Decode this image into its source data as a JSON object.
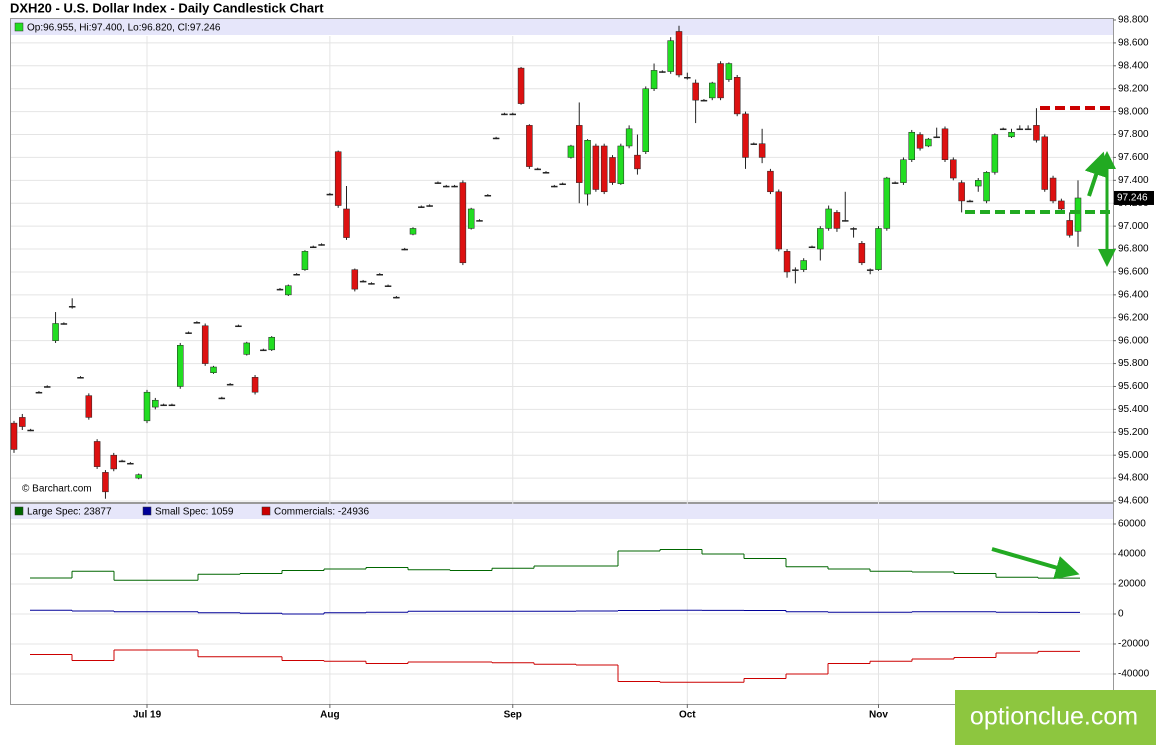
{
  "brand": "optionclue.com",
  "chart_data": [
    {
      "type": "candlestick",
      "title": "DXH20 - U.S. Dollar Index - Daily Candlestick Chart",
      "ohlc_label": "Op:96.955, Hi:97.400, Lo:96.820, Cl:97.246",
      "watermark": "© Barchart.com",
      "categories": [
        null,
        null,
        null,
        null,
        null,
        null,
        null,
        null,
        null,
        null,
        null,
        null,
        null,
        null,
        null,
        null,
        "Jul 19",
        null,
        null,
        null,
        null,
        null,
        null,
        null,
        null,
        null,
        null,
        null,
        null,
        null,
        null,
        null,
        null,
        null,
        null,
        null,
        null,
        null,
        "Aug",
        null,
        null,
        null,
        null,
        null,
        null,
        null,
        null,
        null,
        null,
        null,
        null,
        null,
        null,
        null,
        null,
        null,
        null,
        null,
        null,
        null,
        "Sep",
        null,
        null,
        null,
        null,
        null,
        null,
        null,
        null,
        null,
        null,
        null,
        null,
        null,
        null,
        null,
        null,
        null,
        null,
        null,
        null,
        "Oct",
        null,
        null,
        null,
        null,
        null,
        null,
        null,
        null,
        null,
        null,
        null,
        null,
        null,
        null,
        null,
        null,
        null,
        null,
        null,
        null,
        null,
        null,
        "Nov",
        null,
        null,
        null,
        null,
        null,
        null,
        null,
        null,
        null,
        null,
        null,
        null,
        null,
        null,
        null,
        null,
        null,
        null,
        null,
        null,
        null,
        null,
        null,
        null
      ],
      "open": [
        95.28,
        95.33,
        95.22,
        95.55,
        95.6,
        96.0,
        96.15,
        96.3,
        95.68,
        95.52,
        95.12,
        94.85,
        95.0,
        94.95,
        94.93,
        94.8,
        95.3,
        95.42,
        95.44,
        95.44,
        95.6,
        96.07,
        96.16,
        96.13,
        95.72,
        95.5,
        95.62,
        96.13,
        95.88,
        95.68,
        95.92,
        95.92,
        96.45,
        96.4,
        96.58,
        96.62,
        96.82,
        96.84,
        97.28,
        97.65,
        97.15,
        96.62,
        96.52,
        96.5,
        96.58,
        96.48,
        96.38,
        96.8,
        96.93,
        97.17,
        97.18,
        97.38,
        97.35,
        97.35,
        97.38,
        96.98,
        97.05,
        97.27,
        97.77,
        97.98,
        97.98,
        98.38,
        97.88,
        97.5,
        97.47,
        97.35,
        97.37,
        97.6,
        97.88,
        97.28,
        97.7,
        97.7,
        97.6,
        97.37,
        97.7,
        97.62,
        97.65,
        98.2,
        98.35,
        98.35,
        98.7,
        98.3,
        98.25,
        98.1,
        98.12,
        98.42,
        98.28,
        98.3,
        97.98,
        97.72,
        97.72,
        97.48,
        97.3,
        96.78,
        96.62,
        96.62,
        96.82,
        96.8,
        96.98,
        97.12,
        97.05,
        96.98,
        96.85,
        96.62,
        96.62,
        96.98,
        97.38,
        97.38,
        97.58,
        97.8,
        97.7,
        97.78,
        97.85,
        97.58,
        97.38,
        97.22,
        97.35,
        97.22,
        97.47,
        97.85,
        97.78,
        97.85,
        97.85,
        97.88,
        97.78,
        97.42,
        97.22,
        97.05,
        96.955
      ],
      "high": [
        95.3,
        95.36,
        95.23,
        95.56,
        95.61,
        96.25,
        96.16,
        96.37,
        95.69,
        95.54,
        95.14,
        94.87,
        95.02,
        94.96,
        94.94,
        94.84,
        95.57,
        95.5,
        95.45,
        95.45,
        95.98,
        96.08,
        96.17,
        96.15,
        95.78,
        95.51,
        95.63,
        96.14,
        95.99,
        95.7,
        95.93,
        96.04,
        96.46,
        96.49,
        96.59,
        96.79,
        96.83,
        96.85,
        97.29,
        97.66,
        97.35,
        96.63,
        96.53,
        96.51,
        96.59,
        96.49,
        96.39,
        96.81,
        96.99,
        97.18,
        97.19,
        97.39,
        97.36,
        97.36,
        97.4,
        97.16,
        97.06,
        97.28,
        97.78,
        97.99,
        97.99,
        98.39,
        97.89,
        97.51,
        97.48,
        97.36,
        97.38,
        97.71,
        98.08,
        97.76,
        97.72,
        97.72,
        97.62,
        97.72,
        97.88,
        97.8,
        98.22,
        98.42,
        98.36,
        98.65,
        98.75,
        98.34,
        98.28,
        98.11,
        98.26,
        98.44,
        98.43,
        98.32,
        98.0,
        97.73,
        97.85,
        97.5,
        97.32,
        96.8,
        96.64,
        96.72,
        96.83,
        97.0,
        97.18,
        97.14,
        97.3,
        96.99,
        96.87,
        96.63,
        97.0,
        97.43,
        97.39,
        97.6,
        97.84,
        97.82,
        97.77,
        97.86,
        97.87,
        97.6,
        97.4,
        97.23,
        97.42,
        97.48,
        97.81,
        97.86,
        97.85,
        97.88,
        97.88,
        98.03,
        97.8,
        97.44,
        97.24,
        97.12,
        97.4
      ],
      "low": [
        95.02,
        95.22,
        95.21,
        95.54,
        95.59,
        95.98,
        96.14,
        96.28,
        95.67,
        95.31,
        94.88,
        94.62,
        94.86,
        94.94,
        94.92,
        94.79,
        95.28,
        95.4,
        95.43,
        95.43,
        95.58,
        96.06,
        96.15,
        95.78,
        95.71,
        95.49,
        95.61,
        96.12,
        95.87,
        95.53,
        95.91,
        95.91,
        96.44,
        96.39,
        96.57,
        96.61,
        96.81,
        96.83,
        97.27,
        97.16,
        96.88,
        96.43,
        96.51,
        96.49,
        96.57,
        96.47,
        96.37,
        96.79,
        96.92,
        97.16,
        97.17,
        97.37,
        97.34,
        97.34,
        96.66,
        96.97,
        97.04,
        97.26,
        97.76,
        97.97,
        97.97,
        98.06,
        97.5,
        97.49,
        97.46,
        97.34,
        97.36,
        97.59,
        97.2,
        97.18,
        97.3,
        97.28,
        97.36,
        97.36,
        97.68,
        97.45,
        97.63,
        98.18,
        98.34,
        98.33,
        98.3,
        98.28,
        97.9,
        98.09,
        98.1,
        98.1,
        98.26,
        97.96,
        97.5,
        97.71,
        97.55,
        97.28,
        96.78,
        96.55,
        96.5,
        96.6,
        96.81,
        96.7,
        96.96,
        96.95,
        97.04,
        96.9,
        96.66,
        96.58,
        96.61,
        96.96,
        97.37,
        97.36,
        97.56,
        97.66,
        97.69,
        97.77,
        97.56,
        97.4,
        97.12,
        97.21,
        97.3,
        97.2,
        97.45,
        97.84,
        97.77,
        97.84,
        97.84,
        97.73,
        97.3,
        97.2,
        97.13,
        96.9,
        96.82
      ],
      "close": [
        95.05,
        95.25,
        95.22,
        95.55,
        95.6,
        96.15,
        96.15,
        96.3,
        95.68,
        95.33,
        94.9,
        94.68,
        94.88,
        94.95,
        94.93,
        94.83,
        95.55,
        95.48,
        95.44,
        95.44,
        95.96,
        96.07,
        96.16,
        95.8,
        95.77,
        95.5,
        95.62,
        96.13,
        95.98,
        95.55,
        95.92,
        96.03,
        96.45,
        96.48,
        96.58,
        96.78,
        96.82,
        96.84,
        97.28,
        97.18,
        96.9,
        96.45,
        96.52,
        96.5,
        96.58,
        96.48,
        96.38,
        96.8,
        96.98,
        97.17,
        97.18,
        97.38,
        97.35,
        97.35,
        96.68,
        97.15,
        97.05,
        97.27,
        97.77,
        97.98,
        97.98,
        98.07,
        97.52,
        97.5,
        97.47,
        97.35,
        97.37,
        97.7,
        97.38,
        97.75,
        97.32,
        97.3,
        97.38,
        97.7,
        97.85,
        97.5,
        98.2,
        98.36,
        98.35,
        98.62,
        98.32,
        98.3,
        98.1,
        98.1,
        98.25,
        98.12,
        98.42,
        97.98,
        97.6,
        97.72,
        97.6,
        97.3,
        96.8,
        96.6,
        96.62,
        96.7,
        96.82,
        96.98,
        97.15,
        96.98,
        97.05,
        96.98,
        96.68,
        96.62,
        96.98,
        97.42,
        97.38,
        97.58,
        97.82,
        97.68,
        97.76,
        97.78,
        97.58,
        97.42,
        97.22,
        97.22,
        97.4,
        97.47,
        97.8,
        97.85,
        97.82,
        97.85,
        97.85,
        97.75,
        97.32,
        97.22,
        97.15,
        96.92,
        97.246
      ],
      "last_price": 97.246,
      "ylim": [
        94.6,
        98.8
      ],
      "yticks": [
        {
          "value": 94.6,
          "label": "94.600"
        },
        {
          "value": 94.8,
          "label": "94.800"
        },
        {
          "value": 95.0,
          "label": "95.000"
        },
        {
          "value": 95.2,
          "label": "95.200"
        },
        {
          "value": 95.4,
          "label": "95.400"
        },
        {
          "value": 95.6,
          "label": "95.600"
        },
        {
          "value": 95.8,
          "label": "95.800"
        },
        {
          "value": 96.0,
          "label": "96.000"
        },
        {
          "value": 96.2,
          "label": "96.200"
        },
        {
          "value": 96.4,
          "label": "96.400"
        },
        {
          "value": 96.6,
          "label": "96.600"
        },
        {
          "value": 96.8,
          "label": "96.800"
        },
        {
          "value": 97.0,
          "label": "97.000"
        },
        {
          "value": 97.2,
          "label": "97.200"
        },
        {
          "value": 97.4,
          "label": "97.400"
        },
        {
          "value": 97.6,
          "label": "97.600"
        },
        {
          "value": 97.8,
          "label": "97.800"
        },
        {
          "value": 98.0,
          "label": "98.000"
        },
        {
          "value": 98.2,
          "label": "98.200"
        },
        {
          "value": 98.4,
          "label": "98.400"
        },
        {
          "value": 98.6,
          "label": "98.600"
        },
        {
          "value": 98.8,
          "label": "98.800"
        }
      ],
      "up_color": "#22dd22",
      "down_color": "#dd1111",
      "grid": true
    },
    {
      "type": "step",
      "categories": [
        null,
        null,
        null,
        null,
        null,
        null,
        null,
        null,
        null,
        null,
        null,
        null,
        null,
        null,
        null,
        null,
        null,
        null,
        null,
        null,
        null,
        null,
        null,
        null,
        null
      ],
      "series": [
        {
          "name": "Large Spec: 23877",
          "color": "#006600",
          "values": [
            24000,
            28500,
            22500,
            22500,
            26500,
            27000,
            29000,
            30000,
            31000,
            29500,
            29000,
            30500,
            32000,
            32000,
            42000,
            43000,
            40000,
            37000,
            31500,
            30000,
            28500,
            28000,
            27000,
            24500,
            23877
          ]
        },
        {
          "name": "Small Spec: 1059",
          "color": "#000099",
          "values": [
            2500,
            2000,
            1500,
            1500,
            800,
            500,
            0,
            800,
            1200,
            1800,
            1800,
            1800,
            1800,
            2000,
            2300,
            2500,
            2400,
            2300,
            1500,
            1200,
            1200,
            1500,
            1500,
            1200,
            1059
          ]
        },
        {
          "name": "Commercials: -24936",
          "color": "#cc0000",
          "values": [
            -27000,
            -31000,
            -24000,
            -24000,
            -28500,
            -28500,
            -31000,
            -31500,
            -33000,
            -32000,
            -32000,
            -32500,
            -33500,
            -34000,
            -45000,
            -45500,
            -45500,
            -43000,
            -40000,
            -33000,
            -31500,
            -30000,
            -29000,
            -26000,
            -24936
          ]
        }
      ],
      "ylim": [
        -60000,
        70000
      ],
      "yticks": [
        60000,
        40000,
        20000,
        0,
        -20000,
        -40000
      ],
      "grid": true
    }
  ]
}
